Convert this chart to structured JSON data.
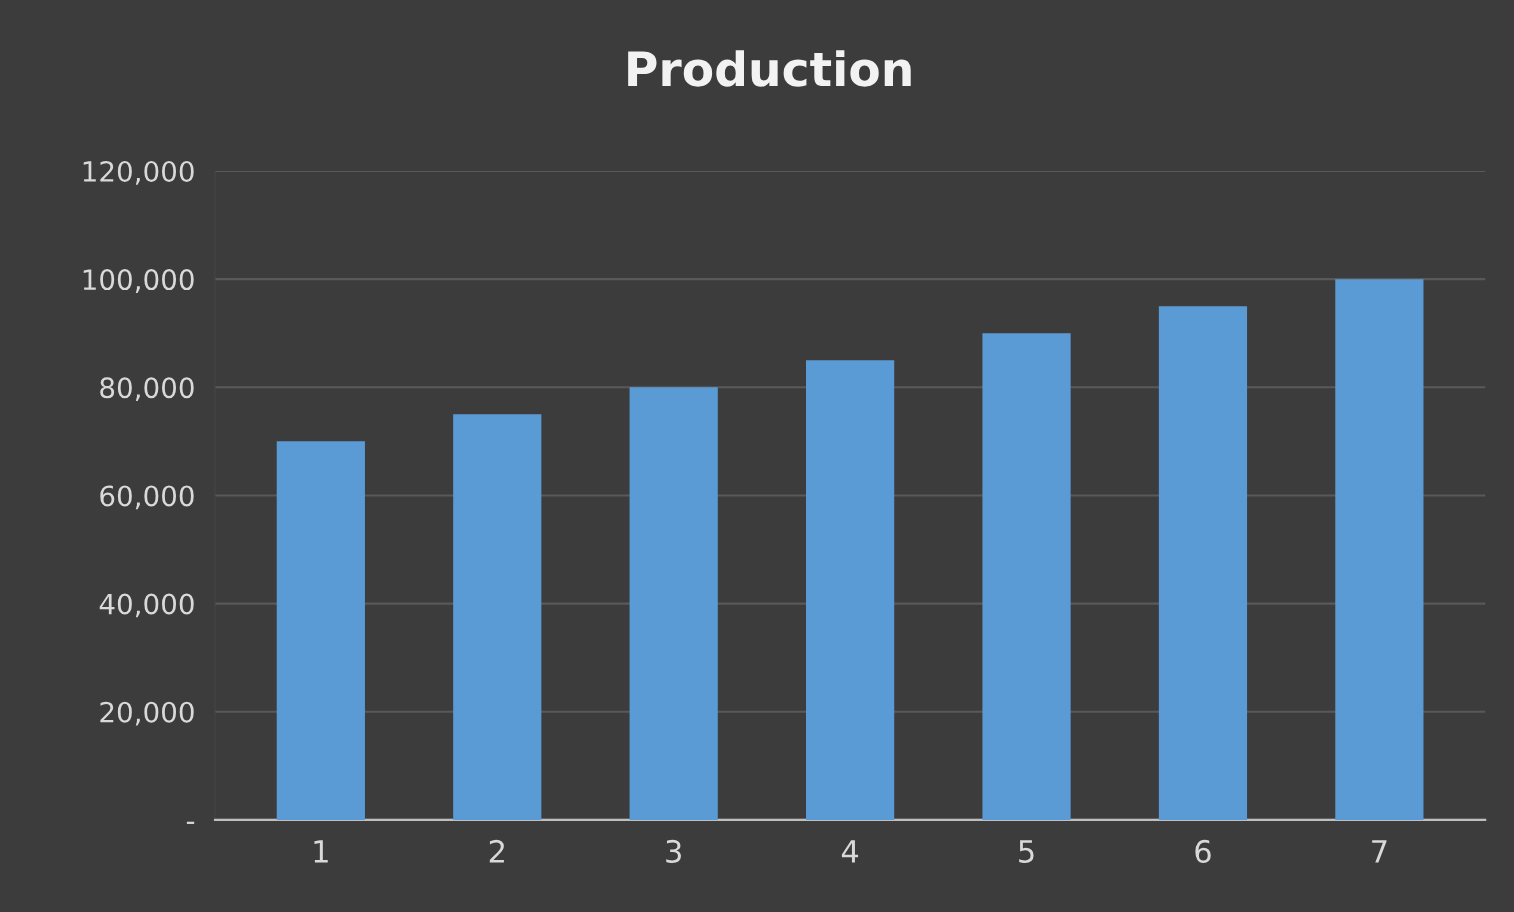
{
  "chart_data": {
    "type": "bar",
    "title": "Production",
    "categories": [
      "1",
      "2",
      "3",
      "4",
      "5",
      "6",
      "7"
    ],
    "values": [
      70000,
      75000,
      80000,
      85000,
      90000,
      95000,
      100000
    ],
    "color": "#5b9bd5",
    "ylim": [
      0,
      120000
    ],
    "yticks": [
      {
        "value": 0,
        "label": "-"
      },
      {
        "value": 20000,
        "label": "20,000"
      },
      {
        "value": 40000,
        "label": "40,000"
      },
      {
        "value": 60000,
        "label": "60,000"
      },
      {
        "value": 80000,
        "label": "80,000"
      },
      {
        "value": 100000,
        "label": "100,000"
      },
      {
        "value": 120000,
        "label": "120,000"
      }
    ],
    "grid": "y",
    "legend": false
  }
}
